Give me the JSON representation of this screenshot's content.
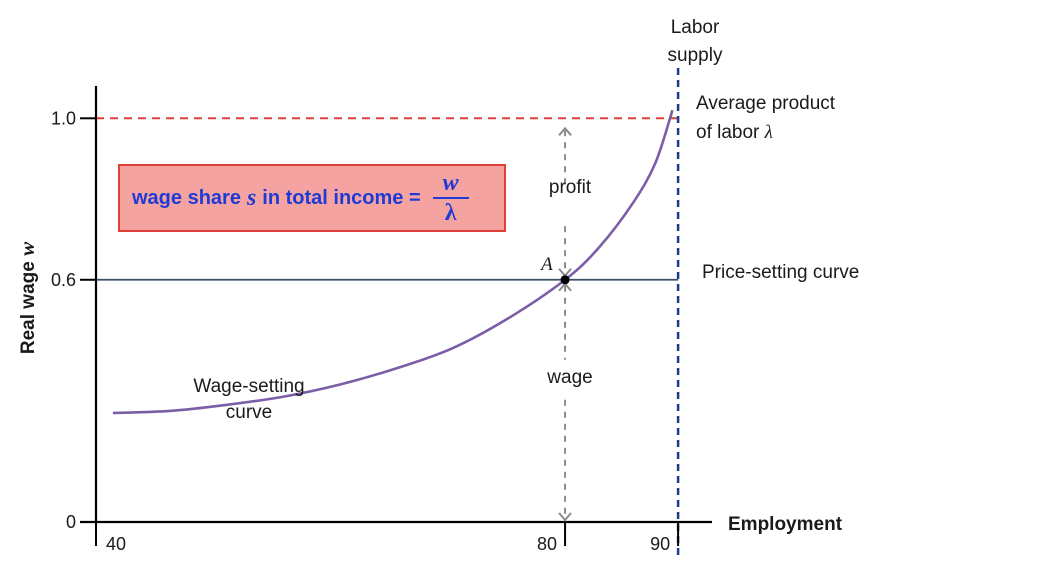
{
  "chart_data": {
    "type": "line",
    "xlabel": "Employment",
    "ylabel": "Real wage w",
    "xlim": [
      38.5,
      93
    ],
    "ylim": [
      0,
      1.08
    ],
    "x_ticks": [
      "40",
      "80",
      "90"
    ],
    "y_ticks": [
      "0",
      "0.6",
      "1.0"
    ],
    "series": [
      {
        "name": "Wage-setting curve",
        "color": "#7b5ea7",
        "x": [
          40,
          45,
          50,
          55,
          60,
          65,
          70,
          75,
          80,
          83,
          86,
          88,
          89.5
        ],
        "y": [
          0.27,
          0.275,
          0.29,
          0.31,
          0.34,
          0.38,
          0.43,
          0.505,
          0.6,
          0.68,
          0.79,
          0.89,
          1.02
        ]
      }
    ],
    "lines": {
      "price_setting": {
        "label": "Price-setting curve",
        "y": 0.6,
        "color": "#3b4f68"
      },
      "average_product": {
        "label_line1": "Average product",
        "label_line2": "of labor λ",
        "y": 1.0,
        "color": "#e0403a"
      },
      "labor_supply": {
        "label_line1": "Labor",
        "label_line2": "supply",
        "x": 90,
        "color": "#1f3b8c"
      }
    },
    "point": {
      "label": "A",
      "x": 80,
      "y": 0.6
    },
    "annotations": {
      "profit": "profit",
      "wage": "wage",
      "wage_curve_line1": "Wage-setting",
      "wage_curve_line2": "curve"
    }
  },
  "formula": {
    "prefix": "wage share",
    "symbol": "s",
    "middle": "in total income =",
    "numerator": "w",
    "denominator": "λ",
    "color": "#1f3bd6",
    "fill": "#f4a3a0",
    "border": "#e0403a"
  }
}
